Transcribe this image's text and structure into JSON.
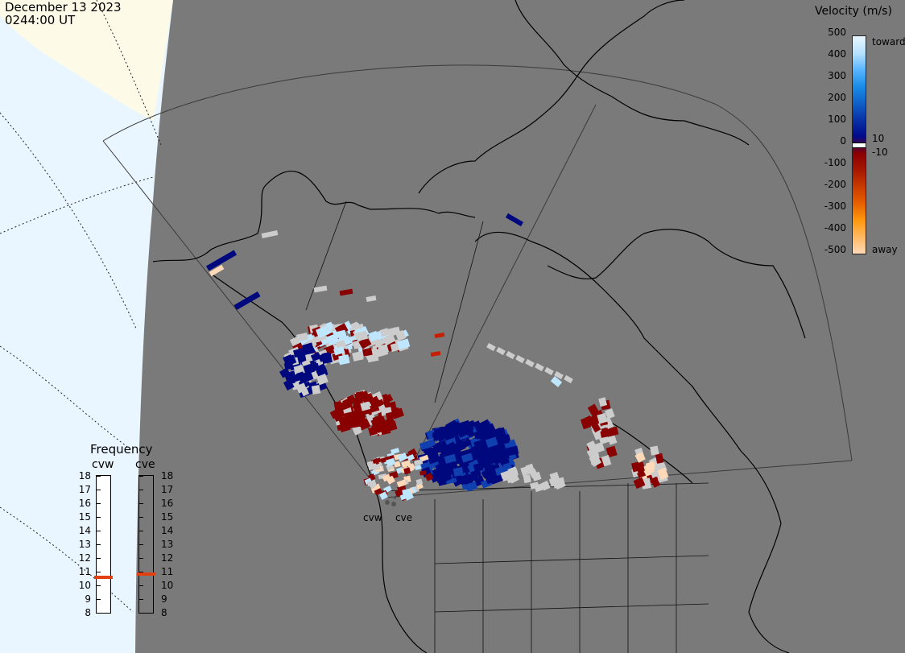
{
  "header": {
    "date": "December 13 2023",
    "time": "0244:00 UT"
  },
  "velocity_scale": {
    "title": "Velocity (m/s)",
    "ticks": [
      "500",
      "400",
      "300",
      "200",
      "100",
      "0",
      "-100",
      "-200",
      "-300",
      "-400",
      "-500"
    ],
    "label_toward": "toward",
    "label_away": "away",
    "label_pos10": "10",
    "label_neg10": "-10",
    "colors": [
      "#e8f6ff",
      "#b6e1ff",
      "#5db8ff",
      "#1a8de8",
      "#0f5fc8",
      "#0a35a8",
      "#000a8c",
      "#8b0000",
      "#a81a00",
      "#c83a00",
      "#e86000",
      "#ff9a10",
      "#ffb85e",
      "#ffd9b8"
    ]
  },
  "frequency": {
    "title": "Frequency",
    "radar_left": "cvw",
    "radar_right": "cve",
    "ticks": [
      "18",
      "17",
      "16",
      "15",
      "14",
      "13",
      "12",
      "11",
      "10",
      "9",
      "8"
    ],
    "cvw_mhz": 10.6,
    "cve_mhz": 10.8,
    "indicator_color": "#e24010"
  },
  "radars": {
    "cvw": "cvw",
    "cve": "cve"
  },
  "map": {
    "land_color": "#7a7a7a",
    "sunlit_color": "#eaf6ff",
    "pole_color": "#fdfbe8",
    "grid_color": "#3a3a3a"
  },
  "legend_colors": {
    "ground_scatter": "#cccccc",
    "toward_strong": "#00087e",
    "away_strong": "#880000"
  }
}
